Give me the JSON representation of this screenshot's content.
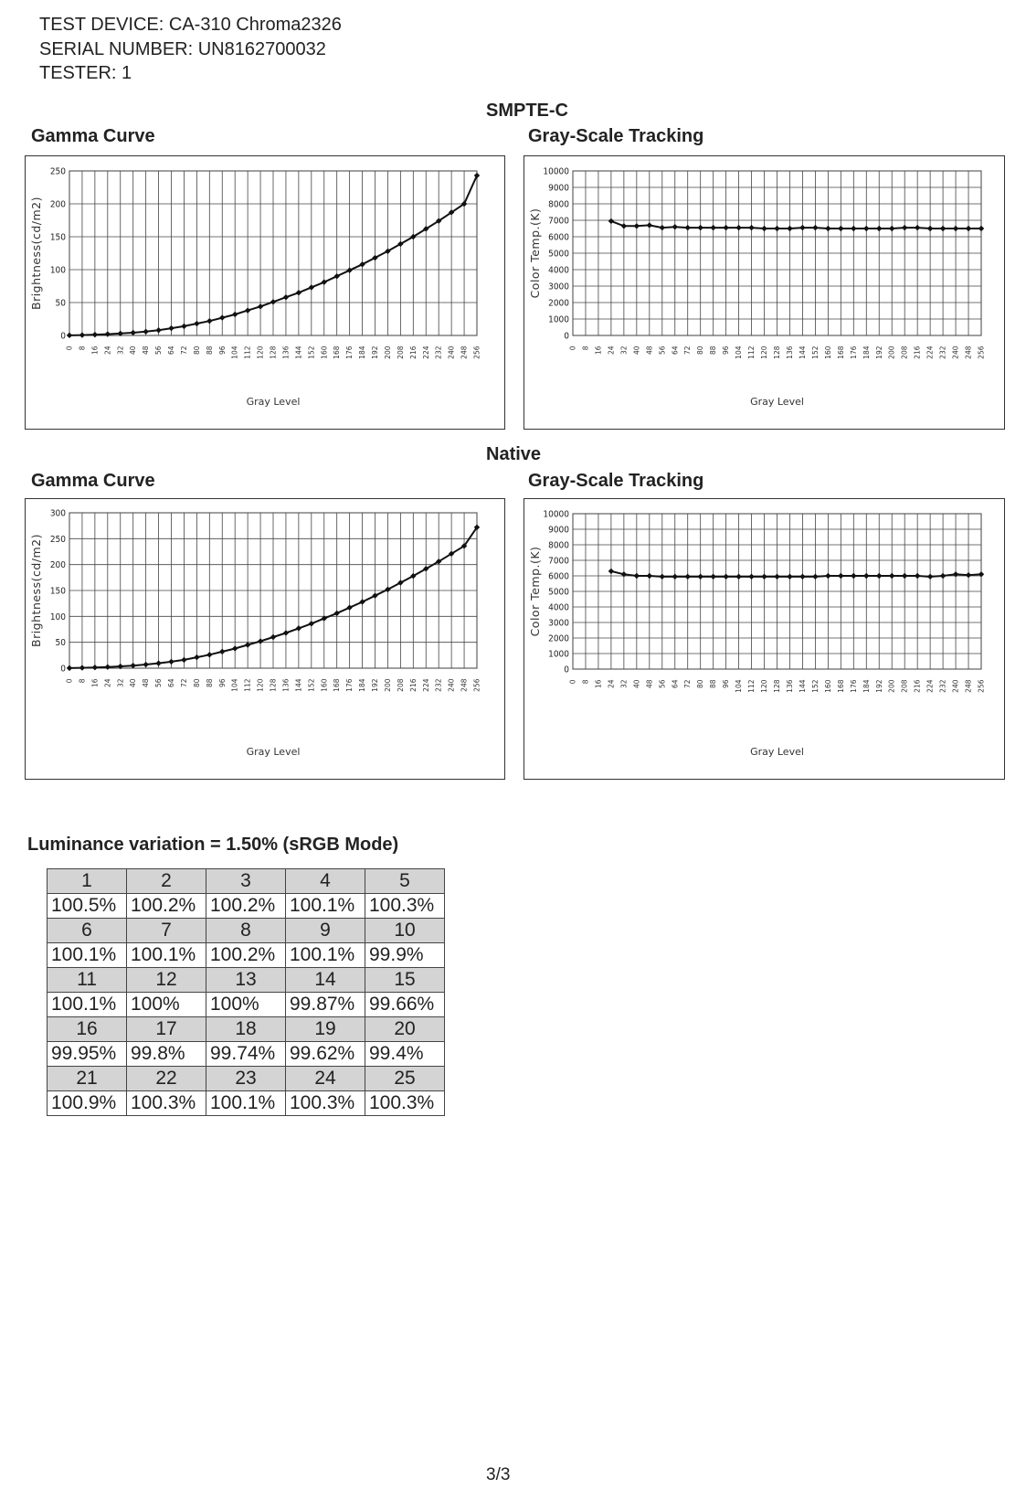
{
  "header": {
    "device_line": "TEST DEVICE: CA-310  Chroma2326",
    "serial_line": "SERIAL NUMBER: UN8162700032",
    "tester_line": "TESTER: 1"
  },
  "sections": {
    "smpte": "SMPTE-C",
    "native": "Native"
  },
  "gray_levels": [
    "0",
    "8",
    "16",
    "24",
    "32",
    "40",
    "48",
    "56",
    "64",
    "72",
    "80",
    "88",
    "96",
    "104",
    "112",
    "120",
    "128",
    "136",
    "144",
    "152",
    "160",
    "168",
    "176",
    "184",
    "192",
    "200",
    "208",
    "216",
    "224",
    "232",
    "240",
    "248",
    "256"
  ],
  "chart_data": [
    {
      "type": "line",
      "title": "Gamma Curve",
      "xlabel": "Gray Level",
      "ylabel": "Brightness(cd/m2)",
      "ylim": [
        0,
        250
      ],
      "yticks": [
        "0",
        "50",
        "100",
        "150",
        "200",
        "250"
      ],
      "grid": true,
      "x": [
        0,
        8,
        16,
        24,
        32,
        40,
        48,
        56,
        64,
        72,
        80,
        88,
        96,
        104,
        112,
        120,
        128,
        136,
        144,
        152,
        160,
        168,
        176,
        184,
        192,
        200,
        208,
        216,
        224,
        232,
        240,
        248,
        256
      ],
      "series": [
        {
          "values": [
            0.2,
            0.6,
            1.2,
            2,
            3,
            4.2,
            5.8,
            8,
            11,
            14,
            18,
            22,
            27,
            32,
            38,
            44,
            51,
            58,
            65,
            73,
            81,
            90,
            99,
            108,
            118,
            128,
            139,
            150,
            162,
            174,
            187,
            200,
            243
          ]
        }
      ]
    },
    {
      "type": "line",
      "title": "Gray-Scale Tracking",
      "xlabel": "Gray Level",
      "ylabel": "Color Temp.(K)",
      "ylim": [
        0,
        10000
      ],
      "yticks": [
        "0",
        "1000",
        "2000",
        "3000",
        "4000",
        "5000",
        "6000",
        "7000",
        "8000",
        "9000",
        "10000"
      ],
      "grid": true,
      "x": [
        24,
        32,
        40,
        48,
        56,
        64,
        72,
        80,
        88,
        96,
        104,
        112,
        120,
        128,
        136,
        144,
        152,
        160,
        168,
        176,
        184,
        192,
        200,
        208,
        216,
        224,
        232,
        240,
        248,
        256
      ],
      "series": [
        {
          "values": [
            6950,
            6650,
            6650,
            6700,
            6550,
            6600,
            6550,
            6550,
            6550,
            6550,
            6550,
            6550,
            6500,
            6500,
            6500,
            6550,
            6550,
            6500,
            6500,
            6500,
            6500,
            6500,
            6500,
            6550,
            6550,
            6500,
            6500,
            6500,
            6500,
            6500
          ]
        }
      ]
    },
    {
      "type": "line",
      "title": "Gamma Curve",
      "xlabel": "Gray Level",
      "ylabel": "Brightness(cd/m2)",
      "ylim": [
        0,
        300
      ],
      "yticks": [
        "0",
        "50",
        "100",
        "150",
        "200",
        "250",
        "300"
      ],
      "grid": true,
      "x": [
        0,
        8,
        16,
        24,
        32,
        40,
        48,
        56,
        64,
        72,
        80,
        88,
        96,
        104,
        112,
        120,
        128,
        136,
        144,
        152,
        160,
        168,
        176,
        184,
        192,
        200,
        208,
        216,
        224,
        232,
        240,
        248,
        256
      ],
      "series": [
        {
          "values": [
            0.2,
            0.7,
            1.4,
            2.3,
            3.5,
            5,
            7,
            9.5,
            12.5,
            16,
            21,
            26,
            32,
            38,
            45,
            52,
            60,
            68,
            77,
            86,
            96,
            106,
            117,
            128,
            140,
            152,
            165,
            178,
            192,
            206,
            221,
            236,
            272
          ]
        }
      ]
    },
    {
      "type": "line",
      "title": "Gray-Scale Tracking",
      "xlabel": "Gray Level",
      "ylabel": "Color Temp.(K)",
      "ylim": [
        0,
        10000
      ],
      "yticks": [
        "0",
        "1000",
        "2000",
        "3000",
        "4000",
        "5000",
        "6000",
        "7000",
        "8000",
        "9000",
        "10000"
      ],
      "grid": true,
      "x": [
        24,
        32,
        40,
        48,
        56,
        64,
        72,
        80,
        88,
        96,
        104,
        112,
        120,
        128,
        136,
        144,
        152,
        160,
        168,
        176,
        184,
        192,
        200,
        208,
        216,
        224,
        232,
        240,
        248,
        256
      ],
      "series": [
        {
          "values": [
            6300,
            6100,
            6000,
            6000,
            5950,
            5950,
            5950,
            5950,
            5950,
            5950,
            5950,
            5950,
            5950,
            5950,
            5950,
            5950,
            5950,
            6000,
            6000,
            6000,
            6000,
            6000,
            6000,
            6000,
            6000,
            5950,
            6000,
            6100,
            6050,
            6100
          ]
        }
      ]
    }
  ],
  "luminance": {
    "title": "Luminance variation = 1.50% (sRGB Mode)",
    "rows": [
      {
        "nums": [
          "1",
          "2",
          "3",
          "4",
          "5"
        ],
        "vals": [
          "100.5%",
          "100.2%",
          "100.2%",
          "100.1%",
          "100.3%"
        ]
      },
      {
        "nums": [
          "6",
          "7",
          "8",
          "9",
          "10"
        ],
        "vals": [
          "100.1%",
          "100.1%",
          "100.2%",
          "100.1%",
          "99.9%"
        ]
      },
      {
        "nums": [
          "11",
          "12",
          "13",
          "14",
          "15"
        ],
        "vals": [
          "100.1%",
          "100%",
          "100%",
          "99.87%",
          "99.66%"
        ]
      },
      {
        "nums": [
          "16",
          "17",
          "18",
          "19",
          "20"
        ],
        "vals": [
          "99.95%",
          "99.8%",
          "99.74%",
          "99.62%",
          "99.4%"
        ]
      },
      {
        "nums": [
          "21",
          "22",
          "23",
          "24",
          "25"
        ],
        "vals": [
          "100.9%",
          "100.3%",
          "100.1%",
          "100.3%",
          "100.3%"
        ]
      }
    ]
  },
  "footer": {
    "page": "3/3"
  }
}
